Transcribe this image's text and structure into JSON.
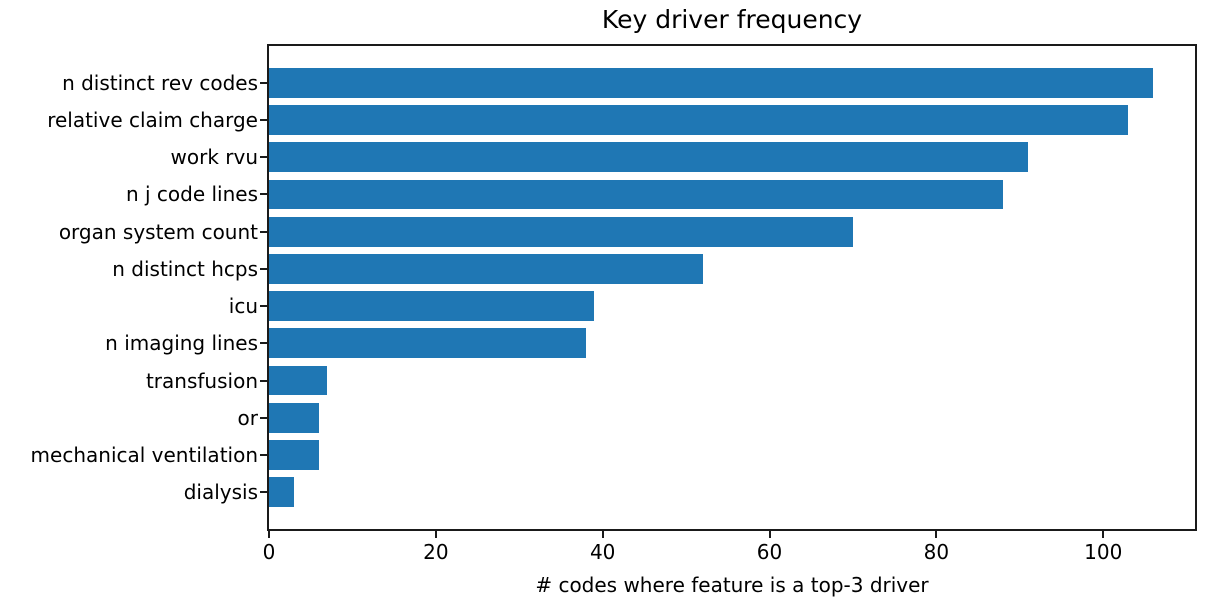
{
  "chart_data": {
    "type": "bar",
    "orientation": "horizontal",
    "title": "Key driver frequency",
    "xlabel": "# codes where feature is a top-3 driver",
    "ylabel": "",
    "categories": [
      "n distinct rev codes",
      "relative claim charge",
      "work rvu",
      "n j code lines",
      "organ system count",
      "n distinct hcps",
      "icu",
      "n imaging lines",
      "transfusion",
      "or",
      "mechanical ventilation",
      "dialysis"
    ],
    "values": [
      106,
      103,
      91,
      88,
      70,
      52,
      39,
      38,
      7,
      6,
      6,
      3
    ],
    "xticks": [
      0,
      20,
      40,
      60,
      80,
      100
    ],
    "xlim": [
      0,
      111
    ],
    "bar_color": "#1f77b4",
    "axis_color": "#1a1a1a",
    "text_color": "#000000",
    "background_color": "#ffffff",
    "grid": false,
    "legend": null,
    "bar_relative_height": 0.8
  }
}
